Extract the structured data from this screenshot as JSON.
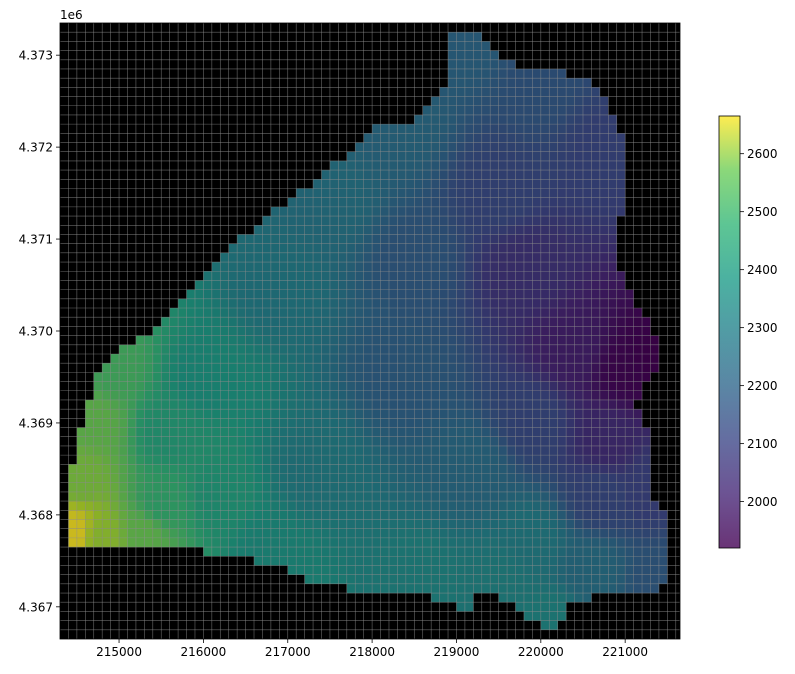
{
  "chart_data": {
    "type": "heatmap",
    "title": "",
    "xlabel": "",
    "ylabel": "",
    "y_offset_text": "1e6",
    "xlim": [
      214300,
      221650
    ],
    "ylim": [
      4366650,
      4373350
    ],
    "x_ticks": [
      215000,
      216000,
      217000,
      218000,
      219000,
      220000,
      221000
    ],
    "y_ticks": [
      4.367,
      4.368,
      4.369,
      4.37,
      4.371,
      4.372,
      4.373
    ],
    "x_tick_labels": [
      "215000",
      "216000",
      "217000",
      "218000",
      "219000",
      "220000",
      "221000"
    ],
    "y_tick_labels": [
      "4.367",
      "4.368",
      "4.369",
      "4.370",
      "4.371",
      "4.372",
      "4.373"
    ],
    "grid_cell_size": 100,
    "background_color": "#000000",
    "grid_line_color": "#8c8c8c",
    "colormap": "viridis",
    "colorbar": {
      "range": [
        1920,
        2665
      ],
      "ticks": [
        2000,
        2100,
        2200,
        2300,
        2400,
        2500,
        2600
      ],
      "tick_labels": [
        "2000",
        "2100",
        "2200",
        "2300",
        "2400",
        "2500",
        "2600"
      ]
    },
    "boundary_polygon": [
      [
        218800,
        4367050
      ],
      [
        219150,
        4366950
      ],
      [
        219250,
        4367200
      ],
      [
        219650,
        4367050
      ],
      [
        219850,
        4366900
      ],
      [
        220150,
        4366750
      ],
      [
        220350,
        4367000
      ],
      [
        220600,
        4367100
      ],
      [
        220950,
        4367200
      ],
      [
        221300,
        4367150
      ],
      [
        221550,
        4367250
      ],
      [
        221550,
        4367900
      ],
      [
        221350,
        4368150
      ],
      [
        221300,
        4368900
      ],
      [
        221100,
        4369200
      ],
      [
        221400,
        4369650
      ],
      [
        221350,
        4370000
      ],
      [
        221050,
        4370450
      ],
      [
        220900,
        4370750
      ],
      [
        220850,
        4371050
      ],
      [
        221000,
        4371400
      ],
      [
        221050,
        4371850
      ],
      [
        220900,
        4372300
      ],
      [
        220700,
        4372650
      ],
      [
        220300,
        4372800
      ],
      [
        219800,
        4372850
      ],
      [
        219400,
        4373050
      ],
      [
        219200,
        4373300
      ],
      [
        218950,
        4373300
      ],
      [
        218950,
        4372950
      ],
      [
        218850,
        4372600
      ],
      [
        218550,
        4372300
      ],
      [
        218150,
        4372300
      ],
      [
        217800,
        4372000
      ],
      [
        217350,
        4371650
      ],
      [
        216800,
        4371300
      ],
      [
        216200,
        4370800
      ],
      [
        215700,
        4370350
      ],
      [
        215350,
        4369950
      ],
      [
        215050,
        4369850
      ],
      [
        214750,
        4369550
      ],
      [
        214600,
        4369150
      ],
      [
        214450,
        4368500
      ],
      [
        214400,
        4367950
      ],
      [
        214450,
        4367650
      ],
      [
        214850,
        4367650
      ],
      [
        215350,
        4367700
      ],
      [
        215800,
        4367650
      ],
      [
        216300,
        4367550
      ],
      [
        216900,
        4367450
      ],
      [
        217200,
        4367300
      ],
      [
        217700,
        4367200
      ],
      [
        218200,
        4367150
      ],
      [
        218600,
        4367200
      ]
    ],
    "elevation_control_points": [
      [
        214450,
        4367800,
        2665
      ],
      [
        214800,
        4367750,
        2560
      ],
      [
        215300,
        4367800,
        2500
      ],
      [
        214550,
        4368400,
        2530
      ],
      [
        214700,
        4369000,
        2500
      ],
      [
        214950,
        4369600,
        2450
      ],
      [
        215600,
        4368900,
        2370
      ],
      [
        215500,
        4368100,
        2420
      ],
      [
        216200,
        4368200,
        2360
      ],
      [
        216000,
        4369500,
        2330
      ],
      [
        216800,
        4367600,
        2320
      ],
      [
        217300,
        4368500,
        2260
      ],
      [
        216900,
        4370500,
        2250
      ],
      [
        217500,
        4371400,
        2230
      ],
      [
        218300,
        4372200,
        2200
      ],
      [
        218600,
        4367300,
        2290
      ],
      [
        219500,
        4367300,
        2280
      ],
      [
        220100,
        4366850,
        2290
      ],
      [
        219900,
        4367700,
        2260
      ],
      [
        219200,
        4368500,
        2200
      ],
      [
        218400,
        4369500,
        2160
      ],
      [
        218500,
        4370800,
        2150
      ],
      [
        219500,
        4371500,
        2100
      ],
      [
        219100,
        4373200,
        2180
      ],
      [
        220000,
        4372700,
        2140
      ],
      [
        220800,
        4372000,
        2090
      ],
      [
        219800,
        4370700,
        2040
      ],
      [
        220400,
        4369800,
        1990
      ],
      [
        221000,
        4369600,
        1930
      ],
      [
        221300,
        4369700,
        1920
      ],
      [
        220800,
        4368800,
        2020
      ],
      [
        221300,
        4368300,
        2080
      ],
      [
        221400,
        4367300,
        2150
      ],
      [
        220600,
        4367400,
        2210
      ],
      [
        220700,
        4368200,
        2100
      ],
      [
        219900,
        4369000,
        2100
      ]
    ]
  }
}
